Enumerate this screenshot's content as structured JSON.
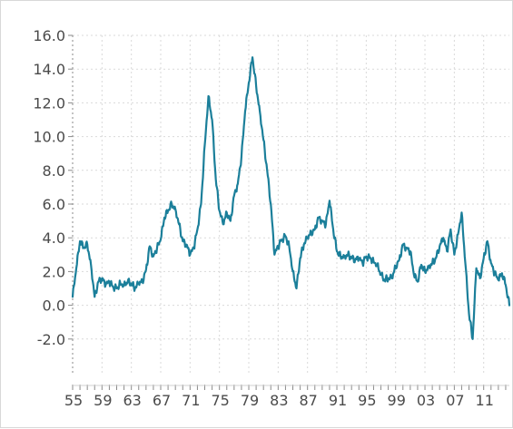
{
  "chart_data": {
    "type": "line",
    "title": "",
    "xlabel": "",
    "ylabel": "",
    "grid": true,
    "xlim": [
      1955,
      2014.5
    ],
    "ylim": [
      -4,
      16
    ],
    "y_ticks": [
      -2,
      0,
      2,
      4,
      6,
      8,
      10,
      12,
      14,
      16
    ],
    "y_tick_labels": [
      "-2.0",
      "0.0",
      "2.0",
      "4.0",
      "6.0",
      "8.0",
      "10.0",
      "12.0",
      "14.0",
      "16.0"
    ],
    "x_ticks": [
      1955,
      1959,
      1963,
      1967,
      1971,
      1975,
      1979,
      1983,
      1987,
      1991,
      1995,
      1999,
      2003,
      2007,
      2011
    ],
    "x_tick_labels": [
      "55",
      "59",
      "63",
      "67",
      "71",
      "75",
      "79",
      "83",
      "87",
      "91",
      "95",
      "99",
      "03",
      "07",
      "11"
    ],
    "colors": {
      "line": "#1b7f9a",
      "grid": "#d9d9d9",
      "axis": "#8a8a8a"
    },
    "series": [
      {
        "x": [
          1955.0,
          1955.5,
          1956.0,
          1956.5,
          1957.0,
          1957.5,
          1958.0,
          1958.5,
          1959.0,
          1959.5,
          1960.0,
          1960.5,
          1961.0,
          1961.5,
          1962.0,
          1962.5,
          1963.0,
          1963.5,
          1964.0,
          1964.5,
          1965.0,
          1965.5,
          1966.0,
          1966.5,
          1967.0,
          1967.5,
          1968.0,
          1968.5,
          1969.0,
          1969.5,
          1970.0,
          1970.5,
          1971.0,
          1971.5,
          1972.0,
          1972.5,
          1973.0,
          1973.5,
          1974.0,
          1974.5,
          1975.0,
          1975.5,
          1976.0,
          1976.5,
          1977.0,
          1977.5,
          1978.0,
          1978.5,
          1979.0,
          1979.5,
          1980.0,
          1980.5,
          1981.0,
          1981.5,
          1982.0,
          1982.5,
          1983.0,
          1983.5,
          1984.0,
          1984.5,
          1985.0,
          1985.5,
          1986.0,
          1986.5,
          1987.0,
          1987.5,
          1988.0,
          1988.5,
          1989.0,
          1989.5,
          1990.0,
          1990.5,
          1991.0,
          1991.5,
          1992.0,
          1992.5,
          1993.0,
          1993.5,
          1994.0,
          1994.5,
          1995.0,
          1995.5,
          1996.0,
          1996.5,
          1997.0,
          1997.5,
          1998.0,
          1998.5,
          1999.0,
          1999.5,
          2000.0,
          2000.5,
          2001.0,
          2001.5,
          2002.0,
          2002.5,
          2003.0,
          2003.5,
          2004.0,
          2004.5,
          2005.0,
          2005.5,
          2006.0,
          2006.5,
          2007.0,
          2007.5,
          2008.0,
          2008.5,
          2009.0,
          2009.5,
          2010.0,
          2010.5,
          2011.0,
          2011.5,
          2012.0,
          2012.5,
          2013.0,
          2013.5,
          2014.0,
          2014.5
        ],
        "values": [
          0.5,
          2.2,
          3.8,
          3.4,
          3.6,
          2.4,
          0.5,
          1.4,
          1.6,
          1.2,
          1.4,
          1.1,
          1.0,
          1.3,
          1.2,
          1.4,
          1.3,
          1.0,
          1.3,
          1.4,
          2.1,
          3.5,
          2.9,
          3.4,
          3.9,
          5.2,
          5.6,
          6.0,
          5.7,
          4.8,
          3.8,
          3.6,
          3.0,
          3.4,
          4.5,
          6.0,
          9.5,
          12.4,
          11.0,
          7.5,
          5.6,
          4.8,
          5.5,
          5.0,
          6.5,
          7.2,
          8.8,
          11.5,
          13.2,
          14.7,
          13.0,
          11.5,
          9.8,
          8.0,
          6.0,
          3.0,
          3.5,
          3.9,
          4.1,
          3.5,
          2.0,
          1.0,
          2.8,
          3.6,
          4.0,
          4.3,
          4.5,
          5.2,
          5.0,
          4.8,
          6.2,
          4.5,
          3.2,
          2.9,
          2.9,
          3.0,
          2.8,
          2.7,
          2.8,
          2.5,
          2.9,
          2.8,
          2.6,
          2.4,
          1.8,
          1.5,
          1.6,
          1.6,
          2.3,
          2.7,
          3.6,
          3.4,
          3.2,
          1.8,
          1.4,
          2.4,
          2.0,
          2.3,
          2.5,
          2.8,
          3.5,
          4.0,
          3.2,
          4.5,
          3.0,
          4.2,
          5.5,
          2.5,
          -0.5,
          -2.0,
          2.2,
          1.6,
          2.8,
          3.8,
          2.5,
          1.9,
          1.5,
          1.9,
          1.2,
          0.0
        ]
      }
    ]
  }
}
